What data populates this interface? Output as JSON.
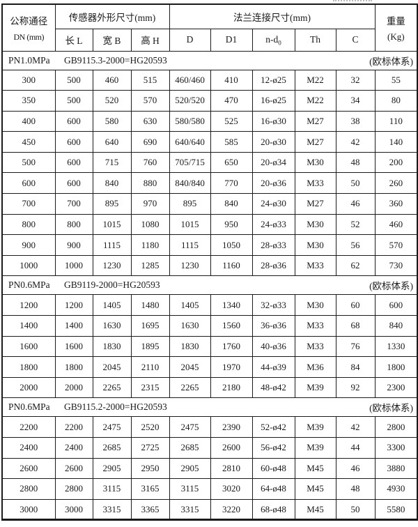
{
  "header": {
    "dn_title": "公称通径",
    "dn_sub": "DN (mm)",
    "sensor_group": "传感器外形尺寸(mm)",
    "flange_group": "法兰连接尺寸(mm)",
    "weight_title": "重量",
    "weight_sub": "(Kg)",
    "subcols": [
      "长 L",
      "宽 B",
      "高 H",
      "D",
      "D1",
      "n-d",
      "Th",
      "C"
    ],
    "nd_subscript": "0"
  },
  "sections": [
    {
      "pressure": "PN1.0MPa",
      "standard": "GB9115.3-2000=HG20593",
      "note": "(欧标体系)",
      "rows": [
        [
          "300",
          "500",
          "460",
          "515",
          "460/460",
          "410",
          "12-ø25",
          "M22",
          "32",
          "55"
        ],
        [
          "350",
          "500",
          "520",
          "570",
          "520/520",
          "470",
          "16-ø25",
          "M22",
          "34",
          "80"
        ],
        [
          "400",
          "600",
          "580",
          "630",
          "580/580",
          "525",
          "16-ø30",
          "M27",
          "38",
          "110"
        ],
        [
          "450",
          "600",
          "640",
          "690",
          "640/640",
          "585",
          "20-ø30",
          "M27",
          "42",
          "140"
        ],
        [
          "500",
          "600",
          "715",
          "760",
          "705/715",
          "650",
          "20-ø34",
          "M30",
          "48",
          "200"
        ],
        [
          "600",
          "600",
          "840",
          "880",
          "840/840",
          "770",
          "20-ø36",
          "M33",
          "50",
          "260"
        ],
        [
          "700",
          "700",
          "895",
          "970",
          "895",
          "840",
          "24-ø30",
          "M27",
          "46",
          "360"
        ],
        [
          "800",
          "800",
          "1015",
          "1080",
          "1015",
          "950",
          "24-ø33",
          "M30",
          "52",
          "460"
        ],
        [
          "900",
          "900",
          "1115",
          "1180",
          "1115",
          "1050",
          "28-ø33",
          "M30",
          "56",
          "570"
        ],
        [
          "1000",
          "1000",
          "1230",
          "1285",
          "1230",
          "1160",
          "28-ø36",
          "M33",
          "62",
          "730"
        ]
      ]
    },
    {
      "pressure": "PN0.6MPa",
      "standard": "GB9119-2000=HG20593",
      "note": "(欧标体系)",
      "rows": [
        [
          "1200",
          "1200",
          "1405",
          "1480",
          "1405",
          "1340",
          "32-ø33",
          "M30",
          "60",
          "600"
        ],
        [
          "1400",
          "1400",
          "1630",
          "1695",
          "1630",
          "1560",
          "36-ø36",
          "M33",
          "68",
          "840"
        ],
        [
          "1600",
          "1600",
          "1830",
          "1895",
          "1830",
          "1760",
          "40-ø36",
          "M33",
          "76",
          "1330"
        ],
        [
          "1800",
          "1800",
          "2045",
          "2110",
          "2045",
          "1970",
          "44-ø39",
          "M36",
          "84",
          "1800"
        ],
        [
          "2000",
          "2000",
          "2265",
          "2315",
          "2265",
          "2180",
          "48-ø42",
          "M39",
          "92",
          "2300"
        ]
      ]
    },
    {
      "pressure": "PN0.6MPa",
      "standard": "GB9115.2-2000=HG20593",
      "note": "(欧标体系)",
      "rows": [
        [
          "2200",
          "2200",
          "2475",
          "2520",
          "2475",
          "2390",
          "52-ø42",
          "M39",
          "42",
          "2800"
        ],
        [
          "2400",
          "2400",
          "2685",
          "2725",
          "2685",
          "2600",
          "56-ø42",
          "M39",
          "44",
          "3300"
        ],
        [
          "2600",
          "2600",
          "2905",
          "2950",
          "2905",
          "2810",
          "60-ø48",
          "M45",
          "46",
          "3880"
        ],
        [
          "2800",
          "2800",
          "3115",
          "3165",
          "3115",
          "3020",
          "64-ø48",
          "M45",
          "48",
          "4930"
        ],
        [
          "3000",
          "3000",
          "3315",
          "3365",
          "3315",
          "3220",
          "68-ø48",
          "M45",
          "50",
          "5580"
        ]
      ]
    }
  ]
}
